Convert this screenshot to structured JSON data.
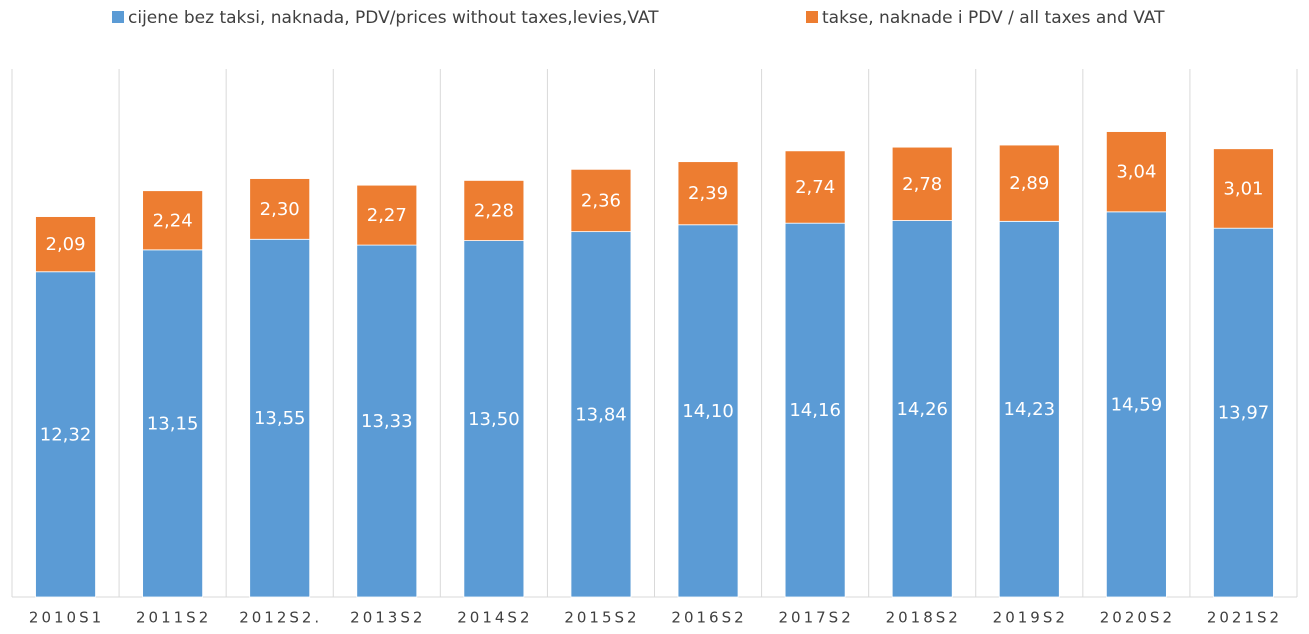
{
  "chart_data": {
    "type": "bar",
    "stacked": true,
    "categories": [
      "2010S1",
      "2011S2",
      "2012S2.",
      "2013S2",
      "2014S2",
      "2015S2",
      "2016S2",
      "2017S2",
      "2018S2",
      "2019S2",
      "2020S2",
      "2021S2"
    ],
    "series": [
      {
        "name": "cijene bez taksi, naknada, PDV/prices without taxes,levies,VAT",
        "color": "#5b9bd5",
        "values": [
          12.32,
          13.15,
          13.55,
          13.33,
          13.5,
          13.84,
          14.1,
          14.16,
          14.26,
          14.23,
          14.59,
          13.97
        ],
        "value_labels": [
          "12,32",
          "13,15",
          "13,55",
          "13,33",
          "13,50",
          "13,84",
          "14,10",
          "14,16",
          "14,26",
          "14,23",
          "14,59",
          "13,97"
        ]
      },
      {
        "name": "takse, naknade i PDV / all taxes and VAT",
        "color": "#ed7d31",
        "values": [
          2.09,
          2.24,
          2.3,
          2.27,
          2.28,
          2.36,
          2.39,
          2.74,
          2.78,
          2.89,
          3.04,
          3.01
        ],
        "value_labels": [
          "2,09",
          "2,24",
          "2,30",
          "2,27",
          "2,28",
          "2,36",
          "2,39",
          "2,74",
          "2,78",
          "2,89",
          "3,04",
          "3,01"
        ]
      }
    ],
    "ylim": [
      0,
      20
    ],
    "legend": "top"
  }
}
